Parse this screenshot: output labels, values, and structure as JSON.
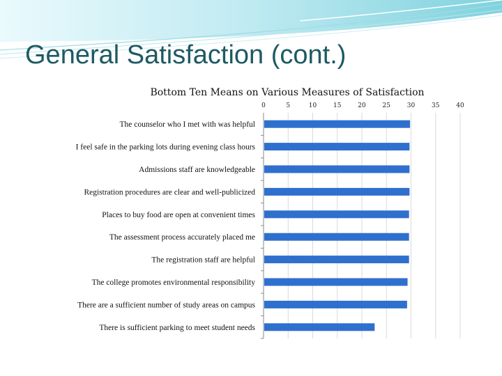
{
  "slide": {
    "title": "General Satisfaction (cont.)"
  },
  "colors": {
    "accent": "#2f6fce",
    "title": "#1d5a63",
    "band_light": "#c9eef3",
    "band_mid": "#7fd2de"
  },
  "chart_data": {
    "type": "bar",
    "orientation": "horizontal",
    "title": "Bottom Ten Means on Various Measures of Satisfaction",
    "xlabel": "",
    "ylabel": "",
    "xlim": [
      0,
      4.0
    ],
    "xticks": [
      "0",
      "5",
      "10",
      "15",
      "20",
      "25",
      "30",
      "35",
      "40"
    ],
    "xtick_values": [
      0,
      0.5,
      1.0,
      1.5,
      2.0,
      2.5,
      3.0,
      3.5,
      4.0
    ],
    "grid": true,
    "legend": "none",
    "categories": [
      "The counselor who I met with was helpful",
      "I feel safe in the parking lots during evening class hours",
      "Admissions staff are knowledgeable",
      "Registration procedures are clear and well-publicized",
      "Places to buy food are open at convenient times",
      "The assessment process accurately placed me",
      "The registration staff are helpful",
      "The college promotes environmental responsibility",
      "There are a sufficient number of study areas on campus",
      "There is sufficient parking to meet student needs"
    ],
    "values": [
      2.98,
      2.97,
      2.97,
      2.97,
      2.96,
      2.96,
      2.96,
      2.93,
      2.92,
      2.26
    ]
  }
}
